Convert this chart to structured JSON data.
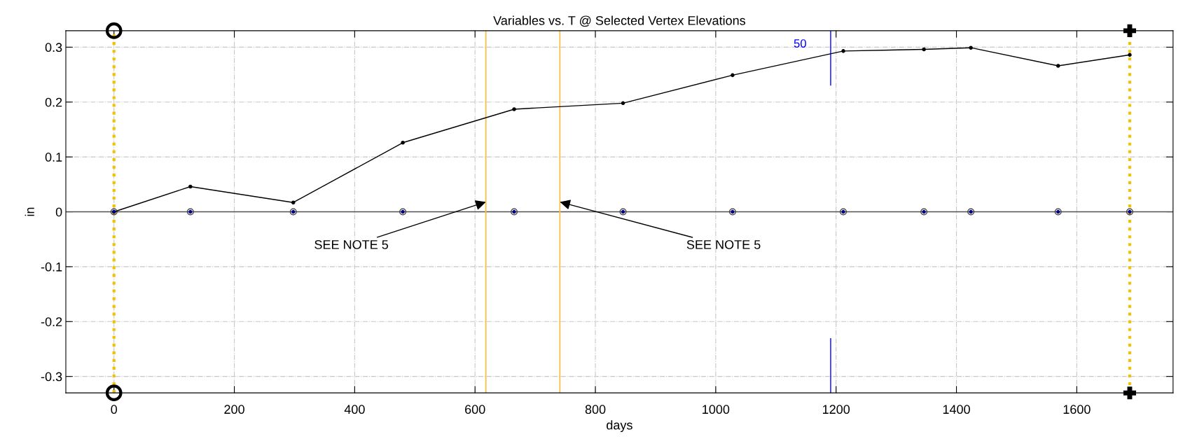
{
  "chart_data": {
    "type": "line",
    "title": "Variables vs. T @ Selected Vertex Elevations",
    "xlabel": "days",
    "ylabel": "in",
    "x": [
      0,
      127,
      298,
      480,
      665,
      846,
      1028,
      1212,
      1346,
      1424,
      1569,
      1688
    ],
    "series": [
      {
        "type": "line",
        "color": "#000000",
        "marker": "circle",
        "values": [
          0,
          0.046,
          0.017,
          0.126,
          0.187,
          0.198,
          0.249,
          0.293,
          0.296,
          0.299,
          0.266,
          0.286
        ]
      },
      {
        "type": "scatter",
        "color": "#00008b",
        "marker": "circle",
        "values": [
          0,
          0,
          0,
          0,
          0,
          0,
          0,
          0,
          0,
          0,
          0,
          0
        ]
      }
    ],
    "xlim": [
      -80,
      1760
    ],
    "xticks": [
      0,
      200,
      400,
      600,
      800,
      1000,
      1200,
      1400,
      1600
    ],
    "ylim": [
      -0.33,
      0.33
    ],
    "yticks": [
      -0.3,
      -0.2,
      -0.1,
      0,
      0.1,
      0.2,
      0.3
    ],
    "grid": true,
    "ref_lines": [
      {
        "axis": "y",
        "value": 0,
        "color": "#505050",
        "line_style": "solid"
      },
      {
        "axis": "x",
        "value": 0,
        "color": "#f5c000",
        "line_style": "dotted"
      },
      {
        "axis": "x",
        "value": 618,
        "color": "#f7c04a",
        "line_style": "solid",
        "label": "SEE NOTE 5"
      },
      {
        "axis": "x",
        "value": 741,
        "color": "#f7c04a",
        "line_style": "solid",
        "label": "SEE NOTE 5"
      },
      {
        "axis": "x",
        "value": 1688,
        "color": "#f5c000",
        "line_style": "dotted"
      },
      {
        "axis": "x",
        "value": 1191,
        "color": "#0000ff",
        "line_style": "solid"
      }
    ],
    "annotations": [
      "50"
    ]
  }
}
